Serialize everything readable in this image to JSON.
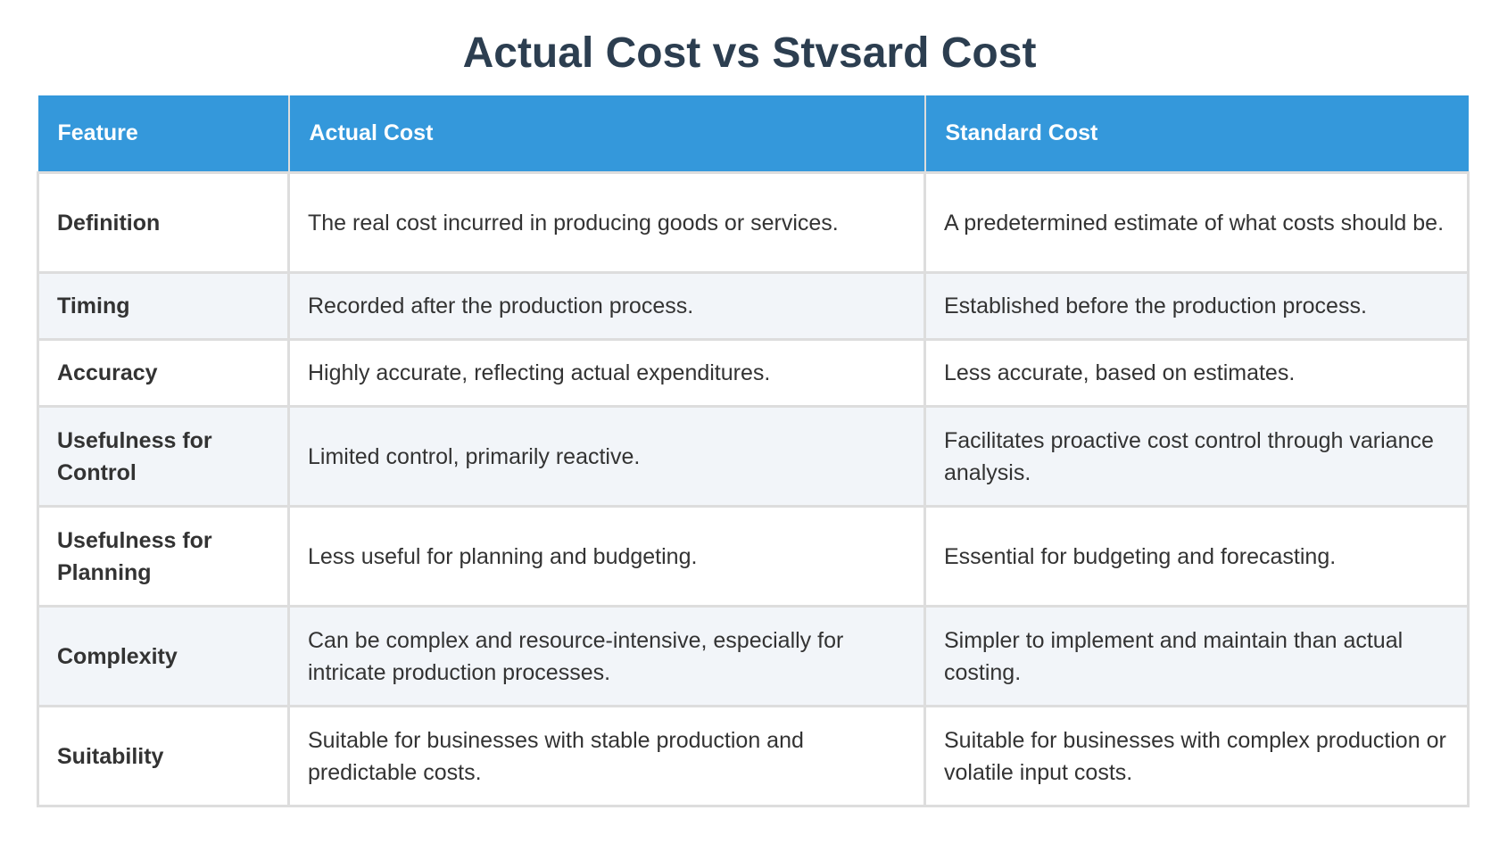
{
  "title": "Actual Cost vs Stvsard Cost",
  "table": {
    "headers": [
      "Feature",
      "Actual Cost",
      "Standard Cost"
    ],
    "rows": [
      {
        "feature": "Definition",
        "actual": "The real cost incurred in producing goods or services.",
        "standard": "A predetermined estimate of what costs should be."
      },
      {
        "feature": "Timing",
        "actual": "Recorded after the production process.",
        "standard": "Established before the production process."
      },
      {
        "feature": "Accuracy",
        "actual": "Highly accurate, reflecting actual expenditures.",
        "standard": "Less accurate, based on estimates."
      },
      {
        "feature": "Usefulness for Control",
        "actual": "Limited control, primarily reactive.",
        "standard": "Facilitates proactive cost control through variance analysis."
      },
      {
        "feature": "Usefulness for Planning",
        "actual": "Less useful for planning and budgeting.",
        "standard": "Essential for budgeting and forecasting."
      },
      {
        "feature": "Complexity",
        "actual": "Can be complex and resource-intensive, especially for intricate production processes.",
        "standard": "Simpler to implement and maintain than actual costing."
      },
      {
        "feature": "Suitability",
        "actual": "Suitable for businesses with stable production and predictable costs.",
        "standard": "Suitable for businesses with complex production or volatile input costs."
      }
    ]
  },
  "colors": {
    "header_bg": "#3498db",
    "title": "#2c3e50",
    "row_alt": "#f2f5f9",
    "border": "#dddddd"
  }
}
